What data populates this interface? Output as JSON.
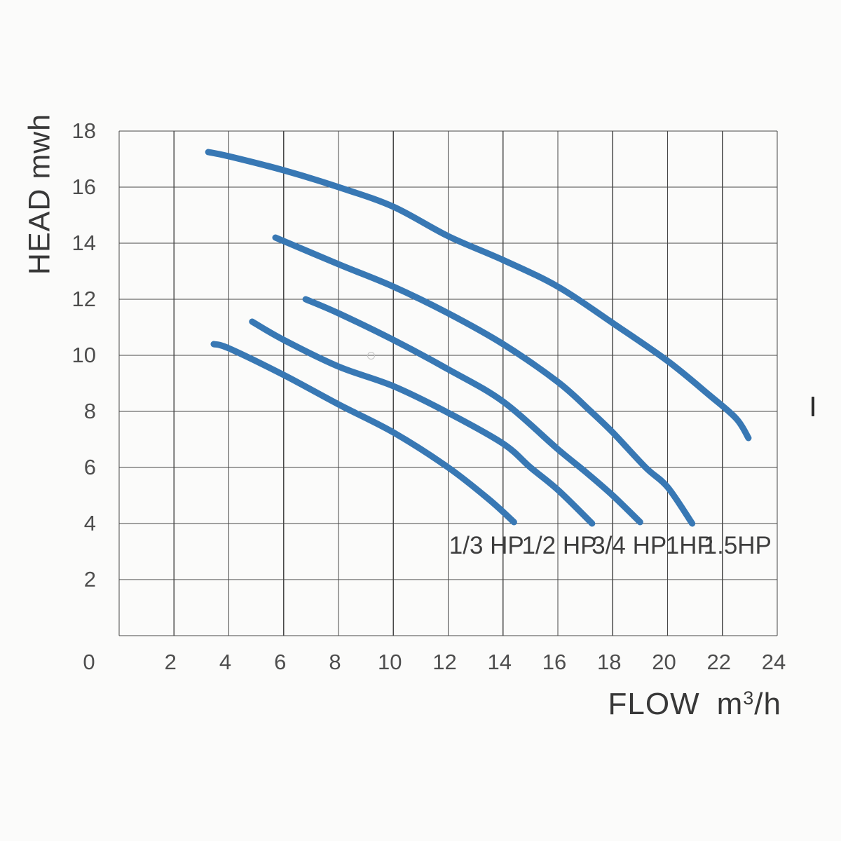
{
  "chart_data": {
    "type": "line",
    "title": "",
    "xlabel": "FLOW m³/h",
    "ylabel": "HEAD mwh",
    "xlim": [
      0,
      24
    ],
    "ylim": [
      0,
      18
    ],
    "grid": true,
    "grid_step": 2,
    "x_ticks": [
      2,
      4,
      6,
      8,
      10,
      12,
      14,
      16,
      18,
      20,
      22,
      24
    ],
    "y_ticks": [
      18,
      16,
      14,
      12,
      10,
      8,
      6,
      4,
      2
    ],
    "origin_label": "0",
    "legend_position": "below-curve-ends",
    "curve_color": "#3878b4",
    "grid_color": "#474747",
    "label_row_head": 3.2,
    "series": [
      {
        "name": "1/3 HP",
        "label_x": 13.4,
        "points": [
          [
            3.45,
            10.4
          ],
          [
            4,
            10.25
          ],
          [
            6,
            9.3
          ],
          [
            8,
            8.25
          ],
          [
            10,
            7.25
          ],
          [
            12,
            6.0
          ],
          [
            13.5,
            4.85
          ],
          [
            14.4,
            4.05
          ]
        ]
      },
      {
        "name": "1/2 HP",
        "label_x": 16.05,
        "points": [
          [
            4.85,
            11.2
          ],
          [
            6,
            10.55
          ],
          [
            8,
            9.6
          ],
          [
            10,
            8.9
          ],
          [
            12,
            7.95
          ],
          [
            14,
            6.85
          ],
          [
            15,
            6.0
          ],
          [
            16,
            5.2
          ],
          [
            17.25,
            4.0
          ]
        ]
      },
      {
        "name": "3/4 HP",
        "label_x": 18.6,
        "points": [
          [
            6.8,
            12.0
          ],
          [
            8,
            11.5
          ],
          [
            10,
            10.55
          ],
          [
            12,
            9.5
          ],
          [
            14,
            8.35
          ],
          [
            16,
            6.65
          ],
          [
            17,
            5.85
          ],
          [
            18,
            5.0
          ],
          [
            19,
            4.05
          ]
        ]
      },
      {
        "name": "1HP",
        "label_x": 20.8,
        "points": [
          [
            5.7,
            14.2
          ],
          [
            8,
            13.25
          ],
          [
            10,
            12.45
          ],
          [
            12,
            11.5
          ],
          [
            14,
            10.4
          ],
          [
            16,
            9.05
          ],
          [
            17.2,
            8.0
          ],
          [
            18,
            7.25
          ],
          [
            19.2,
            6.0
          ],
          [
            20,
            5.3
          ],
          [
            20.9,
            4.0
          ]
        ]
      },
      {
        "name": "1.5HP",
        "label_x": 22.55,
        "points": [
          [
            3.25,
            17.25
          ],
          [
            4,
            17.1
          ],
          [
            6,
            16.6
          ],
          [
            8,
            16.0
          ],
          [
            10,
            15.3
          ],
          [
            12,
            14.25
          ],
          [
            14,
            13.4
          ],
          [
            16,
            12.45
          ],
          [
            18,
            11.15
          ],
          [
            20,
            9.8
          ],
          [
            21.5,
            8.6
          ],
          [
            22.5,
            7.75
          ],
          [
            22.95,
            7.05
          ]
        ]
      }
    ]
  },
  "x_axis_title": {
    "pre": "FLOW",
    "unit": "m",
    "sup": "3",
    "post": "/h"
  }
}
